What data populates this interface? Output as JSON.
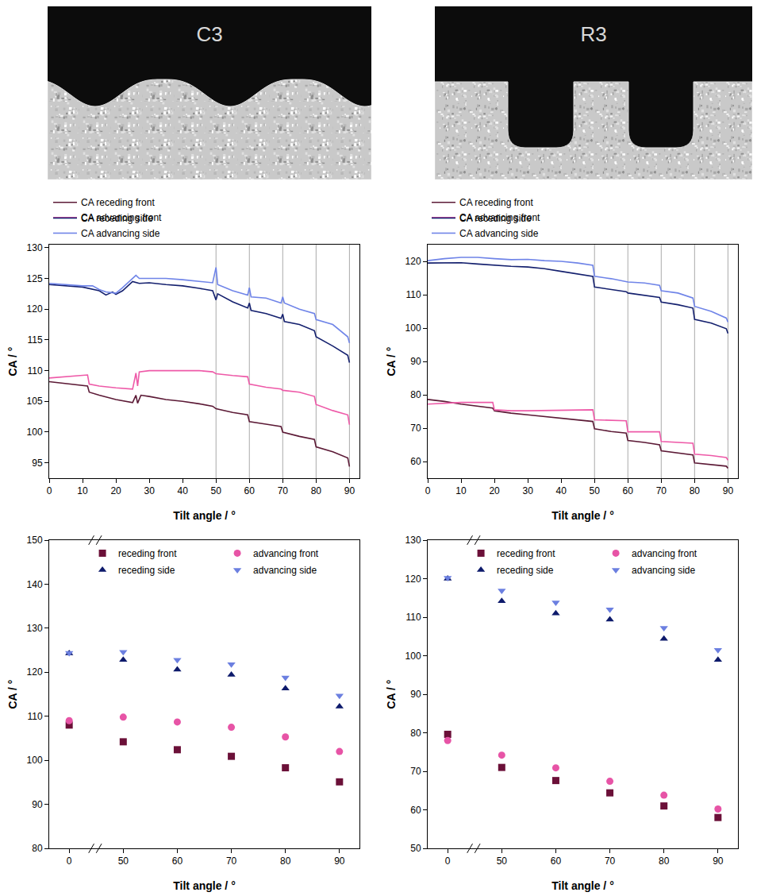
{
  "images": [
    {
      "label": "C3"
    },
    {
      "label": "R3"
    }
  ],
  "chart_data": [
    {
      "type": "line",
      "x_label": "Tilt angle / °",
      "y_label": "CA / °",
      "xlim": [
        0,
        93
      ],
      "xticks": [
        0,
        10,
        20,
        30,
        40,
        50,
        60,
        70,
        80,
        90
      ],
      "ylim": [
        92.5,
        130.5
      ],
      "yticks": [
        95,
        100,
        105,
        110,
        115,
        120,
        125,
        130
      ],
      "legend": "top",
      "vertical_lines": [
        50,
        60,
        70,
        80,
        90
      ],
      "series": [
        {
          "name": "CA receding front",
          "color": "#5c1a36",
          "x": [
            0,
            5,
            11.5,
            12,
            15,
            20,
            25,
            26,
            26.5,
            27.5,
            30,
            35,
            40,
            45,
            49,
            50,
            55,
            59.5,
            60,
            65,
            69.5,
            70,
            75,
            79.5,
            80,
            85,
            89.5,
            90
          ],
          "values": [
            108.2,
            107.9,
            107.5,
            106.5,
            106,
            105.3,
            104.8,
            106,
            104.7,
            106,
            105.8,
            105.3,
            105,
            104.6,
            104.2,
            103.8,
            103.2,
            102.8,
            101.7,
            101.3,
            100.9,
            100,
            99.3,
            98.8,
            97.6,
            96.8,
            95.8,
            94.4
          ]
        },
        {
          "name": "CA advancing front",
          "color": "#ee5aa8",
          "x": [
            0,
            5,
            11.5,
            12,
            15,
            20,
            25,
            26,
            26.5,
            27,
            30,
            40,
            45,
            49,
            50,
            55,
            59.5,
            60,
            65,
            69.5,
            70,
            75,
            79.5,
            80,
            85,
            89.5,
            90
          ],
          "values": [
            108.8,
            109,
            109.3,
            107.8,
            107.5,
            107.2,
            107,
            109.6,
            107.5,
            109.8,
            110,
            110,
            110,
            109.8,
            109.5,
            109.2,
            109,
            107.8,
            107.3,
            107,
            106.8,
            106.5,
            105.8,
            104.5,
            103.5,
            102.8,
            101.2
          ]
        },
        {
          "name": "CA receding side",
          "color": "#14206e",
          "x": [
            0,
            10,
            15,
            17,
            19,
            20,
            22,
            25,
            27,
            30,
            35,
            40,
            45,
            49,
            50,
            50.5,
            55,
            59.5,
            60,
            60.5,
            65,
            69.5,
            70,
            70.5,
            75,
            79.5,
            80,
            85,
            89.5,
            90
          ],
          "values": [
            124,
            123.6,
            123,
            122.3,
            122.8,
            122.4,
            123,
            124.5,
            124.2,
            124.3,
            124,
            123.8,
            123.4,
            123,
            121.5,
            122.5,
            121.2,
            120.2,
            121,
            119.8,
            119.3,
            118.5,
            119.2,
            118,
            117.5,
            116.5,
            115.5,
            114,
            112.5,
            111.3
          ]
        },
        {
          "name": "CA advancing side",
          "color": "#6f84e8",
          "x": [
            0,
            5,
            10,
            13,
            15,
            17,
            20,
            22,
            24,
            26,
            27,
            30,
            35,
            40,
            45,
            49,
            50,
            50.5,
            55,
            59.5,
            60,
            60.5,
            65,
            69.5,
            70,
            70.5,
            75,
            79.5,
            80,
            85,
            89.5,
            90
          ],
          "values": [
            124.2,
            124,
            123.8,
            123.8,
            123.2,
            122.8,
            122.6,
            123.5,
            124.5,
            125.5,
            125,
            125,
            125,
            124.8,
            124.5,
            124.3,
            126.8,
            124,
            123,
            122.3,
            123.5,
            122,
            121.8,
            121,
            122,
            121,
            120,
            119.3,
            118.3,
            117.5,
            115.5,
            114.5
          ]
        }
      ]
    },
    {
      "type": "line",
      "x_label": "Tilt angle / °",
      "y_label": "CA / °",
      "xlim": [
        0,
        93
      ],
      "xticks": [
        0,
        10,
        20,
        30,
        40,
        50,
        60,
        70,
        80,
        90
      ],
      "ylim": [
        55,
        125
      ],
      "yticks": [
        60,
        70,
        80,
        90,
        100,
        110,
        120
      ],
      "legend": "top",
      "vertical_lines": [
        50,
        60,
        70,
        80,
        90
      ],
      "series": [
        {
          "name": "CA receding front",
          "color": "#5c1a36",
          "x": [
            0,
            5,
            10,
            15,
            19.5,
            20,
            25,
            30,
            35,
            40,
            45,
            49.5,
            50,
            55,
            59.5,
            60,
            65,
            69.5,
            70,
            75,
            79.5,
            80,
            85,
            89.5,
            90
          ],
          "values": [
            78.6,
            78,
            77.2,
            76.5,
            76,
            75.2,
            74.5,
            74,
            73.5,
            73,
            72.5,
            72,
            69.8,
            69,
            68.5,
            66.3,
            65.7,
            65,
            63.2,
            62.6,
            62,
            59.6,
            59.1,
            58.6,
            58
          ]
        },
        {
          "name": "CA advancing front",
          "color": "#ee5aa8",
          "x": [
            0,
            5,
            10,
            15,
            19.5,
            20,
            25,
            30,
            40,
            45,
            49.5,
            50,
            55,
            59.5,
            60,
            65,
            69.5,
            70,
            75,
            79.5,
            80,
            85,
            89.5,
            90
          ],
          "values": [
            77.2,
            77.5,
            77.7,
            77.7,
            77.7,
            75.5,
            75.2,
            75.2,
            75.4,
            75.5,
            75.5,
            72.5,
            72.3,
            72.2,
            68.9,
            68.9,
            68.9,
            66,
            65.8,
            65.5,
            62.2,
            61.8,
            61.2,
            60.4
          ]
        },
        {
          "name": "CA receding side",
          "color": "#14206e",
          "x": [
            0,
            10,
            15,
            20,
            25,
            30,
            35,
            40,
            45,
            49.5,
            50,
            55,
            59.5,
            60,
            65,
            69.5,
            70,
            75,
            79.5,
            80,
            85,
            89.5,
            90
          ],
          "values": [
            119.5,
            119.6,
            119.2,
            118.8,
            118.5,
            118.3,
            117.8,
            117,
            116.2,
            115.5,
            112.3,
            111.6,
            110.9,
            110.5,
            109.8,
            109.2,
            107.8,
            107,
            106,
            102.6,
            101.5,
            99.8,
            98.4
          ]
        },
        {
          "name": "CA advancing side",
          "color": "#6f84e8",
          "x": [
            0,
            5,
            10,
            15,
            20,
            25,
            30,
            35,
            40,
            45,
            49.5,
            50,
            55,
            59.5,
            60,
            65,
            69.5,
            70,
            75,
            79.5,
            80,
            85,
            89.5,
            90
          ],
          "values": [
            120.2,
            120.8,
            121.2,
            121.2,
            120.8,
            120.5,
            120.6,
            120.2,
            120,
            119.5,
            118.8,
            115.5,
            114.8,
            114,
            113.8,
            113.5,
            112.8,
            111.2,
            110.5,
            109,
            106.5,
            105,
            103,
            101.8
          ]
        }
      ]
    },
    {
      "type": "scatter",
      "x_label": "Tilt angle / °",
      "y_label": "CA / °",
      "categories": [
        "0",
        "50",
        "60",
        "70",
        "80",
        "90"
      ],
      "ylim": [
        80,
        150
      ],
      "yticks": [
        80,
        90,
        100,
        110,
        120,
        130,
        140,
        150
      ],
      "legend": "top right",
      "series": [
        {
          "name": "receding front",
          "color": "#6b1038",
          "marker": "square",
          "values": [
            108,
            104.2,
            102.4,
            100.9,
            98.3,
            95.1
          ]
        },
        {
          "name": "advancing front",
          "color": "#e754a6",
          "marker": "circle",
          "values": [
            109,
            109.8,
            108.7,
            107.5,
            105.3,
            102
          ]
        },
        {
          "name": "receding side",
          "color": "#0d1a6b",
          "marker": "triangle-up",
          "values": [
            124.3,
            122.8,
            120.6,
            119.4,
            116.3,
            112.2
          ]
        },
        {
          "name": "advancing side",
          "color": "#6b7fe0",
          "marker": "triangle-down",
          "values": [
            124.4,
            124.6,
            122.8,
            121.8,
            118.8,
            114.7
          ]
        }
      ]
    },
    {
      "type": "scatter",
      "x_label": "Tilt angle / °",
      "y_label": "CA / °",
      "categories": [
        "0",
        "50",
        "60",
        "70",
        "80",
        "90"
      ],
      "ylim": [
        50,
        130
      ],
      "yticks": [
        50,
        60,
        70,
        80,
        90,
        100,
        110,
        120,
        130
      ],
      "legend": "top right",
      "series": [
        {
          "name": "receding front",
          "color": "#6b1038",
          "marker": "square",
          "values": [
            79.6,
            71,
            67.6,
            64.4,
            61,
            58
          ]
        },
        {
          "name": "advancing front",
          "color": "#e754a6",
          "marker": "circle",
          "values": [
            78,
            74.2,
            70.9,
            67.4,
            63.8,
            60.2
          ]
        },
        {
          "name": "receding side",
          "color": "#0d1a6b",
          "marker": "triangle-up",
          "values": [
            120,
            114.2,
            111,
            109.4,
            104.4,
            98.9
          ]
        },
        {
          "name": "advancing side",
          "color": "#6b7fe0",
          "marker": "triangle-down",
          "values": [
            120.2,
            116.9,
            113.8,
            112,
            107.2,
            101.5
          ]
        }
      ]
    }
  ]
}
